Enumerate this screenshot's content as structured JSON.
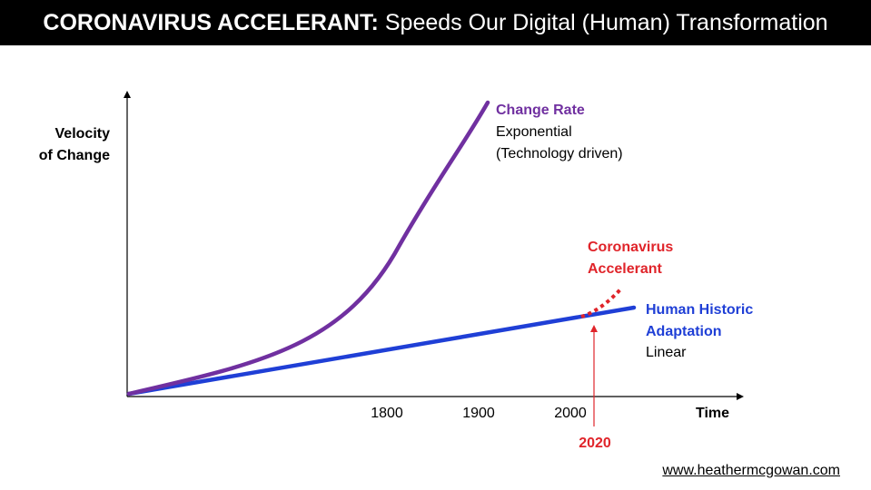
{
  "header": {
    "title_bold": "CORONAVIRUS ACCELERANT:",
    "title_rest": "Speeds Our Digital (Human) Transformation"
  },
  "axes": {
    "y_label_line1": "Velocity",
    "y_label_line2": "of Change",
    "x_label": "Time",
    "x_ticks": [
      "1800",
      "1900",
      "2000"
    ]
  },
  "marker": {
    "label": "2020",
    "color": "#e0242a"
  },
  "series": {
    "change_rate": {
      "title": "Change Rate",
      "line1": "Exponential",
      "line2": "(Technology driven)",
      "color": "#7030a0"
    },
    "coronavirus": {
      "title_line1": "Coronavirus",
      "title_line2": "Accelerant",
      "color": "#e0242a"
    },
    "human": {
      "title_line1": "Human Historic",
      "title_line2": "Adaptation",
      "line3": "Linear",
      "color": "#1f3fd6"
    }
  },
  "footer": {
    "website": "www.heathermcgowan.com"
  }
}
